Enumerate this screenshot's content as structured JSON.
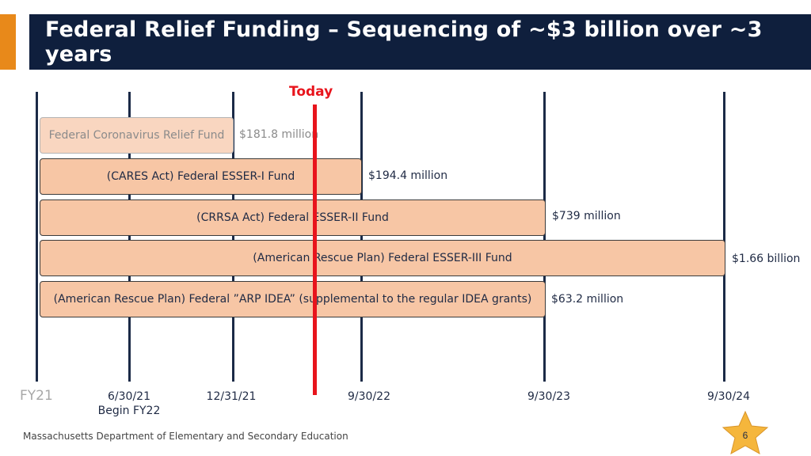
{
  "header": {
    "title": "Federal Relief Funding – Sequencing of ~$3 billion over ~3 years"
  },
  "today": {
    "label": "Today"
  },
  "funds": [
    {
      "name": "Federal Coronavirus Relief Fund",
      "amount": "$181.8 million"
    },
    {
      "name": "(CARES Act) Federal ESSER-I Fund",
      "amount": "$194.4 million"
    },
    {
      "name": "(CRRSA Act) Federal ESSER-II Fund",
      "amount": "$739 million"
    },
    {
      "name": "(American Rescue Plan) Federal ESSER-III Fund",
      "amount": "$1.66 billion"
    },
    {
      "name": "(American Rescue Plan) Federal ”ARP IDEA” (supplemental to the regular IDEA grants)",
      "amount": "$63.2 million"
    }
  ],
  "timeline": {
    "start_label": "FY21",
    "dates": [
      {
        "label": "6/30/21",
        "sublabel": "Begin FY22"
      },
      {
        "label": "12/31/21"
      },
      {
        "label": "9/30/22"
      },
      {
        "label": "9/30/23"
      },
      {
        "label": "9/30/24"
      }
    ]
  },
  "footer": {
    "org": "Massachusetts Department of Elementary and Secondary Education",
    "page_number": "6"
  },
  "colors": {
    "title_bg": "#0f1f3d",
    "accent": "#e8891a",
    "bar_fill": "#f7c6a5",
    "today": "#e8141c",
    "star": "#f5b63c"
  }
}
